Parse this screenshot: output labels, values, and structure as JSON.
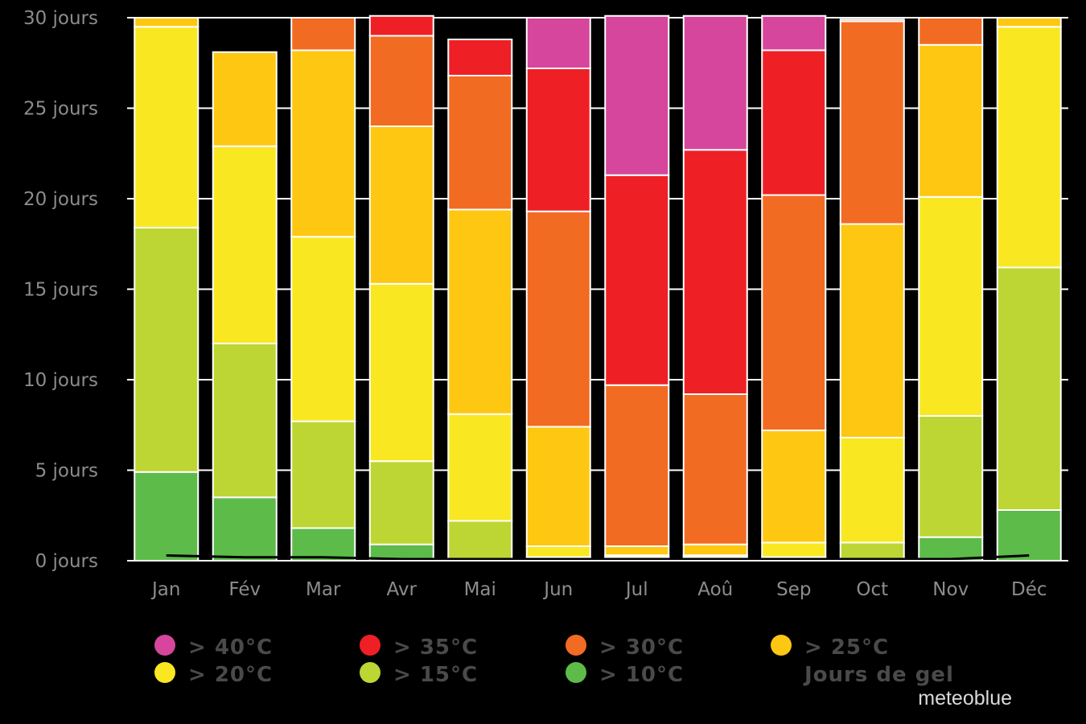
{
  "chart_data": {
    "type": "bar",
    "stacked": true,
    "title": "",
    "xlabel": "",
    "ylabel": "",
    "ylim": [
      0,
      30
    ],
    "yticks": [
      0,
      5,
      10,
      15,
      20,
      25,
      30
    ],
    "ytick_labels": [
      "0 jours",
      "5 jours",
      "10 jours",
      "15 jours",
      "20 jours",
      "25 jours",
      "30 jours"
    ],
    "grid": true,
    "categories": [
      "Jan",
      "Fév",
      "Mar",
      "Avr",
      "Mai",
      "Jun",
      "Jul",
      "Aoû",
      "Sep",
      "Oct",
      "Nov",
      "Déc"
    ],
    "series": [
      {
        "name": "> 10°C",
        "color": "#5dbb4a",
        "values": [
          4.9,
          3.5,
          1.8,
          0.9,
          0.1,
          0.1,
          0.1,
          0.1,
          0.1,
          0.1,
          1.3,
          2.8
        ]
      },
      {
        "name": "> 15°C",
        "color": "#bdd634",
        "values": [
          13.5,
          8.5,
          5.9,
          4.6,
          2.1,
          0.1,
          0.1,
          0.1,
          0.1,
          0.9,
          6.7,
          13.4
        ]
      },
      {
        "name": "> 20°C",
        "color": "#f9e821",
        "values": [
          11.1,
          10.9,
          10.2,
          9.8,
          5.9,
          0.6,
          0.1,
          0.1,
          0.8,
          5.8,
          12.1,
          13.3
        ]
      },
      {
        "name": "> 25°C",
        "color": "#fec711",
        "values": [
          0.5,
          5.2,
          10.3,
          8.7,
          11.3,
          6.6,
          0.5,
          0.6,
          6.2,
          11.8,
          8.4,
          0.5
        ]
      },
      {
        "name": "> 30°C",
        "color": "#f26b23",
        "values": [
          0,
          0,
          1.8,
          5.0,
          7.4,
          11.9,
          8.9,
          8.3,
          13.0,
          11.2,
          1.5,
          0
        ]
      },
      {
        "name": "> 35°C",
        "color": "#ee2026",
        "values": [
          0,
          0,
          0,
          1.1,
          2.0,
          7.9,
          11.6,
          13.5,
          8.0,
          0.1,
          0,
          0
        ]
      },
      {
        "name": "> 40°C",
        "color": "#d6469c",
        "values": [
          0,
          0,
          0,
          0,
          0,
          2.8,
          8.8,
          7.4,
          1.9,
          0,
          0,
          0
        ]
      }
    ],
    "frost_days": {
      "name": "Jours de gel",
      "color": "#000000",
      "values": [
        0.2,
        0.1,
        0.1,
        0,
        0,
        0,
        0,
        0,
        0,
        0,
        0,
        0.2
      ]
    },
    "legend": {
      "placement": "bottom",
      "items": [
        {
          "label": "> 40°C",
          "color": "#d6469c"
        },
        {
          "label": "> 35°C",
          "color": "#ee2026"
        },
        {
          "label": "> 30°C",
          "color": "#f26b23"
        },
        {
          "label": "> 25°C",
          "color": "#fec711"
        },
        {
          "label": "> 20°C",
          "color": "#f9e821"
        },
        {
          "label": "> 15°C",
          "color": "#bdd634"
        },
        {
          "label": "> 10°C",
          "color": "#5dbb4a"
        },
        {
          "label": "Jours de gel",
          "color": "#000000"
        }
      ]
    }
  },
  "watermark": "meteoblue"
}
